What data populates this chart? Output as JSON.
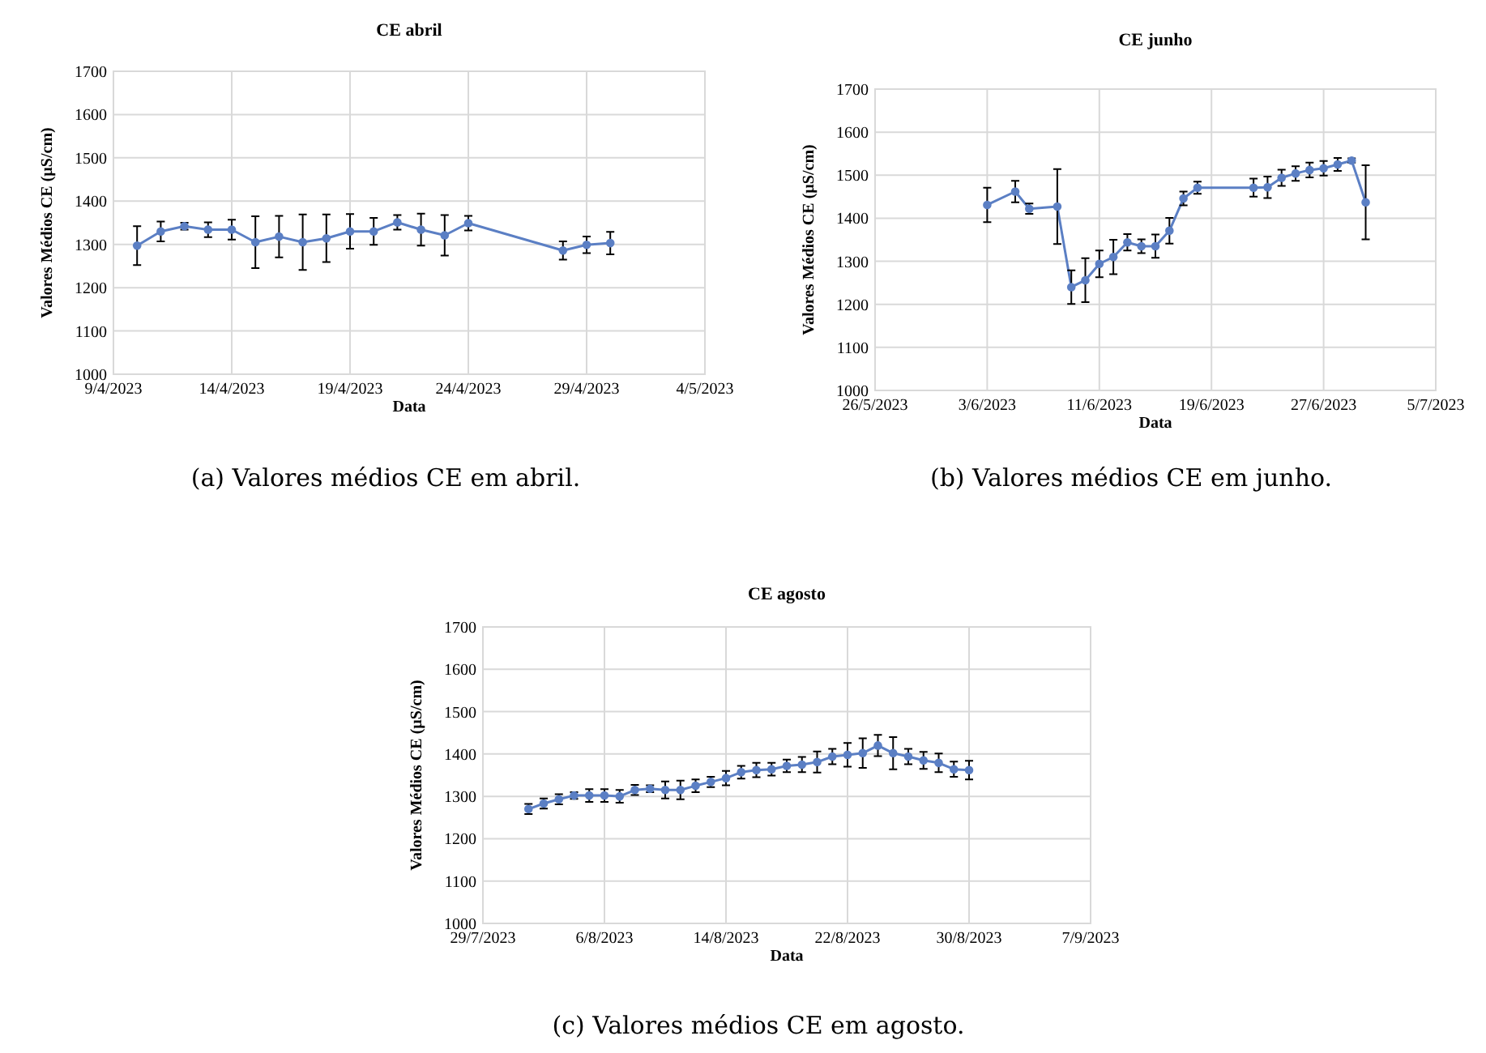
{
  "chart_data": [
    {
      "type": "line",
      "title": "CE abril",
      "xlabel": "Data",
      "ylabel": "Valores Médios CE (µS/cm)",
      "annotations": [
        "(a) Valores médios CE em abril."
      ],
      "grid": true,
      "marker": "circle",
      "xlim": [
        "2023-04-09",
        "2023-05-04"
      ],
      "xticks": [
        {
          "value": "2023-04-09",
          "label": "9/4/2023"
        },
        {
          "value": "2023-04-14",
          "label": "14/4/2023"
        },
        {
          "value": "2023-04-19",
          "label": "19/4/2023"
        },
        {
          "value": "2023-04-24",
          "label": "24/4/2023"
        },
        {
          "value": "2023-04-29",
          "label": "29/4/2023"
        },
        {
          "value": "2023-05-04",
          "label": "4/5/2023"
        }
      ],
      "ylim": [
        1000,
        1700
      ],
      "yticks": [
        1000,
        1100,
        1200,
        1300,
        1400,
        1500,
        1600,
        1700
      ],
      "x": [
        "2023-04-10",
        "2023-04-11",
        "2023-04-12",
        "2023-04-13",
        "2023-04-14",
        "2023-04-15",
        "2023-04-16",
        "2023-04-17",
        "2023-04-18",
        "2023-04-19",
        "2023-04-20",
        "2023-04-21",
        "2023-04-22",
        "2023-04-23",
        "2023-04-24",
        "2023-04-28",
        "2023-04-29",
        "2023-04-30"
      ],
      "series": [
        {
          "color": "#5b7fc4",
          "values": [
            1297,
            1330,
            1342,
            1334,
            1334,
            1305,
            1318,
            1305,
            1314,
            1330,
            1330,
            1351,
            1334,
            1321,
            1349,
            1286,
            1299,
            1303
          ],
          "errors": [
            45,
            23,
            8,
            17,
            23,
            60,
            48,
            64,
            55,
            40,
            31,
            17,
            37,
            47,
            17,
            21,
            19,
            26
          ]
        }
      ]
    },
    {
      "type": "line",
      "title": "CE junho",
      "xlabel": "Data",
      "ylabel": "Valores Médios CE (µS/cm)",
      "annotations": [
        "(b) Valores médios CE em junho."
      ],
      "grid": true,
      "marker": "circle",
      "xlim": [
        "2023-05-26",
        "2023-07-05"
      ],
      "xticks": [
        {
          "value": "2023-05-26",
          "label": "26/5/2023"
        },
        {
          "value": "2023-06-03",
          "label": "3/6/2023"
        },
        {
          "value": "2023-06-11",
          "label": "11/6/2023"
        },
        {
          "value": "2023-06-19",
          "label": "19/6/2023"
        },
        {
          "value": "2023-06-27",
          "label": "27/6/2023"
        },
        {
          "value": "2023-07-05",
          "label": "5/7/2023"
        }
      ],
      "ylim": [
        1000,
        1700
      ],
      "yticks": [
        1000,
        1100,
        1200,
        1300,
        1400,
        1500,
        1600,
        1700
      ],
      "x": [
        "2023-06-03",
        "2023-06-05",
        "2023-06-06",
        "2023-06-08",
        "2023-06-09",
        "2023-06-10",
        "2023-06-11",
        "2023-06-12",
        "2023-06-13",
        "2023-06-14",
        "2023-06-15",
        "2023-06-16",
        "2023-06-17",
        "2023-06-18",
        "2023-06-22",
        "2023-06-23",
        "2023-06-24",
        "2023-06-25",
        "2023-06-26",
        "2023-06-27",
        "2023-06-28",
        "2023-06-29",
        "2023-06-30"
      ],
      "series": [
        {
          "color": "#5b7fc4",
          "values": [
            1431,
            1462,
            1422,
            1427,
            1240,
            1256,
            1294,
            1310,
            1344,
            1335,
            1335,
            1371,
            1446,
            1471,
            1471,
            1472,
            1494,
            1504,
            1512,
            1516,
            1525,
            1534,
            1437
          ],
          "errors": [
            40,
            25,
            12,
            87,
            39,
            51,
            31,
            40,
            19,
            16,
            27,
            30,
            16,
            14,
            21,
            25,
            19,
            17,
            17,
            17,
            15,
            5,
            86
          ]
        }
      ]
    },
    {
      "type": "line",
      "title": "CE agosto",
      "xlabel": "Data",
      "ylabel": "Valores Médios CE (µS/cm)",
      "annotations": [
        "(c) Valores médios CE em agosto."
      ],
      "grid": true,
      "marker": "circle",
      "xlim": [
        "2023-07-29",
        "2023-09-07"
      ],
      "xticks": [
        {
          "value": "2023-07-29",
          "label": "29/7/2023"
        },
        {
          "value": "2023-08-06",
          "label": "6/8/2023"
        },
        {
          "value": "2023-08-14",
          "label": "14/8/2023"
        },
        {
          "value": "2023-08-22",
          "label": "22/8/2023"
        },
        {
          "value": "2023-08-30",
          "label": "30/8/2023"
        },
        {
          "value": "2023-09-07",
          "label": "7/9/2023"
        }
      ],
      "ylim": [
        1000,
        1700
      ],
      "yticks": [
        1000,
        1100,
        1200,
        1300,
        1400,
        1500,
        1600,
        1700
      ],
      "x": [
        "2023-08-01",
        "2023-08-02",
        "2023-08-03",
        "2023-08-04",
        "2023-08-05",
        "2023-08-06",
        "2023-08-07",
        "2023-08-08",
        "2023-08-09",
        "2023-08-10",
        "2023-08-11",
        "2023-08-12",
        "2023-08-13",
        "2023-08-14",
        "2023-08-15",
        "2023-08-16",
        "2023-08-17",
        "2023-08-18",
        "2023-08-19",
        "2023-08-20",
        "2023-08-21",
        "2023-08-22",
        "2023-08-23",
        "2023-08-24",
        "2023-08-25",
        "2023-08-26",
        "2023-08-27",
        "2023-08-28",
        "2023-08-29",
        "2023-08-30"
      ],
      "series": [
        {
          "color": "#5b7fc4",
          "values": [
            1270,
            1283,
            1293,
            1302,
            1302,
            1302,
            1300,
            1315,
            1318,
            1315,
            1315,
            1325,
            1334,
            1343,
            1357,
            1362,
            1364,
            1372,
            1375,
            1381,
            1394,
            1398,
            1402,
            1420,
            1402,
            1394,
            1385,
            1379,
            1364,
            1362
          ],
          "errors": [
            12,
            12,
            12,
            8,
            15,
            15,
            15,
            12,
            8,
            20,
            22,
            15,
            12,
            17,
            15,
            17,
            15,
            15,
            18,
            25,
            18,
            28,
            35,
            25,
            38,
            18,
            20,
            22,
            18,
            22
          ]
        }
      ]
    }
  ]
}
